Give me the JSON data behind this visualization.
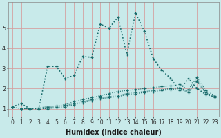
{
  "xlabel": "Humidex (Indice chaleur)",
  "ylabel": "",
  "background_color": "#c8eaea",
  "grid_color": "#d4a0a0",
  "line_color": "#1a6b6b",
  "xlim": [
    -0.5,
    23.5
  ],
  "ylim": [
    0.6,
    6.3
  ],
  "yticks": [
    1,
    2,
    3,
    4,
    5
  ],
  "xticks": [
    0,
    1,
    2,
    3,
    4,
    5,
    6,
    7,
    8,
    9,
    10,
    11,
    12,
    13,
    14,
    15,
    16,
    17,
    18,
    19,
    20,
    21,
    22,
    23
  ],
  "series": [
    [
      1.1,
      1.25,
      1.0,
      1.0,
      3.1,
      3.1,
      2.5,
      2.65,
      3.6,
      3.55,
      5.2,
      5.0,
      5.55,
      3.7,
      5.75,
      4.85,
      3.5,
      2.9,
      2.5,
      1.9,
      2.5,
      2.0,
      1.7,
      1.6
    ],
    [
      1.1,
      1.0,
      1.0,
      1.05,
      1.1,
      1.15,
      1.2,
      1.35,
      1.45,
      1.55,
      1.65,
      1.75,
      1.85,
      1.9,
      1.95,
      2.0,
      2.05,
      2.1,
      2.15,
      2.2,
      1.95,
      2.55,
      1.9,
      1.65
    ],
    [
      1.1,
      1.0,
      1.0,
      1.0,
      1.05,
      1.1,
      1.15,
      1.25,
      1.35,
      1.45,
      1.55,
      1.6,
      1.65,
      1.75,
      1.8,
      1.85,
      1.9,
      1.95,
      2.0,
      2.05,
      1.85,
      2.4,
      1.8,
      1.6
    ],
    [
      1.1,
      1.0,
      1.0,
      1.0,
      1.0,
      1.05,
      1.1,
      1.2,
      1.3,
      1.4,
      1.5,
      1.55,
      1.6,
      1.7,
      1.75,
      1.8,
      1.85,
      1.9,
      1.95,
      2.0,
      1.8,
      2.35,
      1.75,
      1.55
    ]
  ],
  "tick_fontsize": 5.5,
  "xlabel_fontsize": 7
}
